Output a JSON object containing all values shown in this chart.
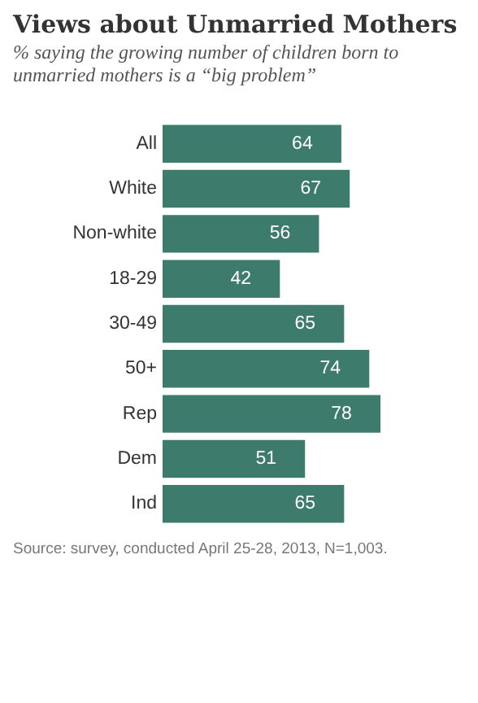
{
  "chart_data": {
    "type": "bar",
    "orientation": "horizontal",
    "title": "Views about Unmarried Mothers",
    "subtitle": "% saying the growing number of children born to unmarried mothers is a “big problem”",
    "categories": [
      "All",
      null,
      "White",
      "Non-white",
      null,
      "18-29",
      "30-49",
      "50+",
      null,
      "Rep",
      "Dem",
      "Ind"
    ],
    "values": [
      64,
      null,
      67,
      56,
      null,
      42,
      65,
      74,
      null,
      78,
      51,
      65
    ],
    "color": "#3d7c6c",
    "data_labels": true,
    "annotations": [
      "Source: survey, conducted April 25-28, 2013, N=1,003."
    ]
  }
}
